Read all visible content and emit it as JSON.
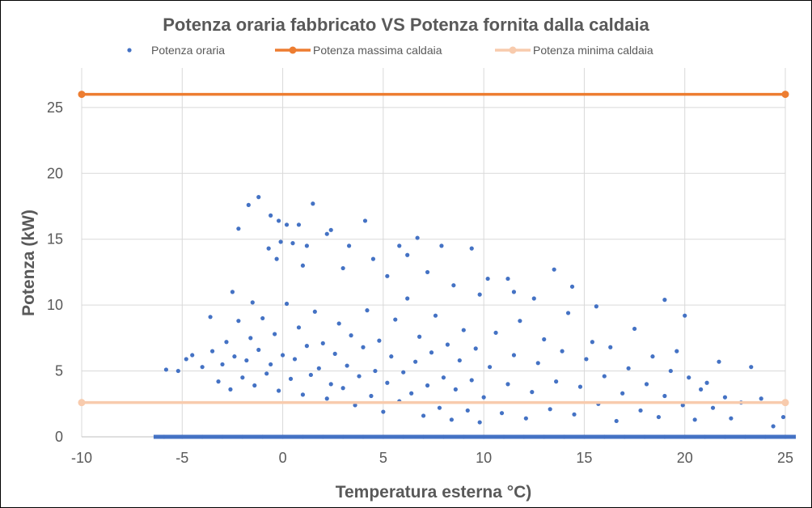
{
  "chart_data": {
    "type": "scatter",
    "title": "Potenza oraria fabbricato VS Potenza fornita dalla caldaia",
    "xlabel": "Temperatura esterna °C)",
    "ylabel": "Potenza (kW)",
    "xlim": [
      -10,
      25
    ],
    "ylim": [
      0,
      28
    ],
    "xticks": [
      -10,
      -5,
      0,
      5,
      10,
      15,
      20,
      25
    ],
    "yticks": [
      0,
      5,
      10,
      15,
      20,
      25
    ],
    "grid": "vertical and horizontal",
    "legend": "top",
    "series": [
      {
        "name": "Potenza oraria",
        "kind": "markers",
        "color": "#4472C4",
        "points": [
          [
            -1.2,
            18.2
          ],
          [
            -1.7,
            17.6
          ],
          [
            1.5,
            17.7
          ],
          [
            -2.2,
            15.8
          ],
          [
            -0.6,
            16.8
          ],
          [
            -0.2,
            16.4
          ],
          [
            0.2,
            16.1
          ],
          [
            0.8,
            16.1
          ],
          [
            4.1,
            16.4
          ],
          [
            2.4,
            15.7
          ],
          [
            2.2,
            15.4
          ],
          [
            6.7,
            15.1
          ],
          [
            5.8,
            14.5
          ],
          [
            7.9,
            14.5
          ],
          [
            9.4,
            14.3
          ],
          [
            -0.1,
            14.8
          ],
          [
            0.5,
            14.7
          ],
          [
            -0.7,
            14.3
          ],
          [
            1.2,
            14.5
          ],
          [
            3.3,
            14.5
          ],
          [
            13.5,
            12.7
          ],
          [
            10.2,
            12.0
          ],
          [
            11.2,
            12.0
          ],
          [
            14.4,
            11.4
          ],
          [
            15.6,
            9.9
          ],
          [
            19.0,
            10.4
          ],
          [
            20.0,
            9.2
          ],
          [
            -2.5,
            11.0
          ],
          [
            -1.5,
            10.2
          ],
          [
            4.5,
            13.5
          ],
          [
            6.2,
            13.8
          ],
          [
            7.2,
            12.5
          ],
          [
            8.5,
            11.5
          ],
          [
            5.2,
            12.2
          ],
          [
            3.0,
            12.8
          ],
          [
            1.0,
            13.0
          ],
          [
            -0.3,
            13.5
          ],
          [
            12.5,
            10.5
          ],
          [
            11.5,
            11.0
          ],
          [
            9.8,
            10.8
          ],
          [
            -5.8,
            5.1
          ],
          [
            -5.2,
            5.0
          ],
          [
            -4.8,
            5.9
          ],
          [
            -4.5,
            6.2
          ],
          [
            -4.0,
            5.3
          ],
          [
            -3.6,
            9.1
          ],
          [
            -3.5,
            6.5
          ],
          [
            -3.2,
            4.2
          ],
          [
            -3.0,
            5.5
          ],
          [
            -2.8,
            7.2
          ],
          [
            -2.6,
            3.6
          ],
          [
            -2.4,
            6.1
          ],
          [
            -2.2,
            8.8
          ],
          [
            -2.0,
            4.5
          ],
          [
            -1.8,
            5.8
          ],
          [
            -1.6,
            7.5
          ],
          [
            -1.4,
            3.9
          ],
          [
            -1.2,
            6.6
          ],
          [
            -1.0,
            9.0
          ],
          [
            -0.8,
            4.8
          ],
          [
            -0.6,
            5.5
          ],
          [
            -0.4,
            7.8
          ],
          [
            -0.2,
            3.5
          ],
          [
            0.0,
            6.2
          ],
          [
            0.2,
            10.1
          ],
          [
            0.4,
            4.4
          ],
          [
            0.6,
            5.9
          ],
          [
            0.8,
            8.3
          ],
          [
            1.0,
            3.2
          ],
          [
            1.2,
            6.9
          ],
          [
            1.4,
            4.7
          ],
          [
            1.6,
            9.5
          ],
          [
            1.8,
            5.2
          ],
          [
            2.0,
            7.1
          ],
          [
            2.2,
            2.9
          ],
          [
            2.4,
            4.0
          ],
          [
            2.6,
            6.3
          ],
          [
            2.8,
            8.6
          ],
          [
            3.0,
            3.7
          ],
          [
            3.2,
            5.4
          ],
          [
            3.4,
            7.7
          ],
          [
            3.6,
            2.4
          ],
          [
            3.8,
            4.6
          ],
          [
            4.0,
            6.8
          ],
          [
            4.2,
            9.6
          ],
          [
            4.4,
            3.1
          ],
          [
            4.6,
            5.0
          ],
          [
            4.8,
            7.3
          ],
          [
            5.0,
            1.9
          ],
          [
            5.2,
            4.1
          ],
          [
            5.4,
            6.1
          ],
          [
            5.6,
            8.9
          ],
          [
            5.8,
            2.7
          ],
          [
            6.0,
            4.9
          ],
          [
            6.2,
            10.5
          ],
          [
            6.4,
            3.3
          ],
          [
            6.6,
            5.7
          ],
          [
            6.8,
            7.6
          ],
          [
            7.0,
            1.6
          ],
          [
            7.2,
            3.9
          ],
          [
            7.4,
            6.4
          ],
          [
            7.6,
            9.2
          ],
          [
            7.8,
            2.2
          ],
          [
            8.0,
            4.5
          ],
          [
            8.2,
            7.0
          ],
          [
            8.4,
            1.3
          ],
          [
            8.6,
            3.6
          ],
          [
            8.8,
            5.8
          ],
          [
            9.0,
            8.1
          ],
          [
            9.2,
            2.0
          ],
          [
            9.4,
            4.3
          ],
          [
            9.6,
            6.7
          ],
          [
            9.8,
            1.1
          ],
          [
            10.0,
            3.0
          ],
          [
            10.3,
            5.3
          ],
          [
            10.6,
            7.9
          ],
          [
            10.9,
            1.8
          ],
          [
            11.2,
            4.0
          ],
          [
            11.5,
            6.2
          ],
          [
            11.8,
            8.8
          ],
          [
            12.1,
            1.4
          ],
          [
            12.4,
            3.4
          ],
          [
            12.7,
            5.6
          ],
          [
            13.0,
            7.4
          ],
          [
            13.3,
            2.1
          ],
          [
            13.6,
            4.2
          ],
          [
            13.9,
            6.5
          ],
          [
            14.2,
            9.4
          ],
          [
            14.5,
            1.7
          ],
          [
            14.8,
            3.8
          ],
          [
            15.1,
            5.9
          ],
          [
            15.4,
            7.2
          ],
          [
            15.7,
            2.5
          ],
          [
            16.0,
            4.6
          ],
          [
            16.3,
            6.8
          ],
          [
            16.6,
            1.2
          ],
          [
            16.9,
            3.3
          ],
          [
            17.2,
            5.2
          ],
          [
            17.5,
            8.2
          ],
          [
            17.8,
            2.0
          ],
          [
            18.1,
            4.0
          ],
          [
            18.4,
            6.1
          ],
          [
            18.7,
            1.5
          ],
          [
            19.0,
            3.1
          ],
          [
            19.3,
            5.0
          ],
          [
            19.6,
            6.5
          ],
          [
            19.9,
            2.4
          ],
          [
            20.2,
            4.5
          ],
          [
            20.5,
            1.3
          ],
          [
            20.8,
            3.6
          ],
          [
            21.1,
            4.1
          ],
          [
            21.4,
            2.2
          ],
          [
            21.7,
            5.7
          ],
          [
            22.0,
            3.0
          ],
          [
            22.3,
            1.4
          ],
          [
            22.8,
            2.6
          ],
          [
            23.3,
            5.3
          ],
          [
            23.8,
            2.9
          ],
          [
            24.4,
            0.8
          ],
          [
            24.9,
            1.5
          ],
          [
            -5.9,
            0
          ],
          [
            -5.0,
            0
          ],
          [
            -4.0,
            0
          ],
          [
            -3.0,
            0
          ],
          [
            -2.0,
            0
          ],
          [
            -1.0,
            0
          ],
          [
            0.0,
            0
          ],
          [
            1.0,
            0
          ],
          [
            2.0,
            0
          ],
          [
            3.0,
            0
          ],
          [
            4.0,
            0
          ],
          [
            5.0,
            0
          ],
          [
            6.0,
            0
          ],
          [
            7.0,
            0
          ],
          [
            8.0,
            0
          ],
          [
            9.0,
            0
          ],
          [
            10.0,
            0
          ],
          [
            11.0,
            0
          ],
          [
            12.0,
            0
          ],
          [
            13.0,
            0
          ],
          [
            14.0,
            0
          ],
          [
            15.0,
            0
          ],
          [
            16.0,
            0
          ],
          [
            17.0,
            0
          ],
          [
            18.0,
            0
          ],
          [
            19.0,
            0
          ],
          [
            20.0,
            0
          ],
          [
            21.0,
            0
          ],
          [
            22.0,
            0
          ],
          [
            23.0,
            0
          ],
          [
            24.0,
            0
          ],
          [
            25.0,
            0
          ]
        ]
      },
      {
        "name": "Potenza massima caldaia",
        "kind": "line-markers",
        "color": "#ED7D31",
        "points": [
          [
            -10,
            26
          ],
          [
            25,
            26
          ]
        ]
      },
      {
        "name": "Potenza minima caldaia",
        "kind": "line-markers",
        "color": "#F8CBAD",
        "points": [
          [
            -10,
            2.6
          ],
          [
            25,
            2.6
          ]
        ]
      }
    ]
  }
}
